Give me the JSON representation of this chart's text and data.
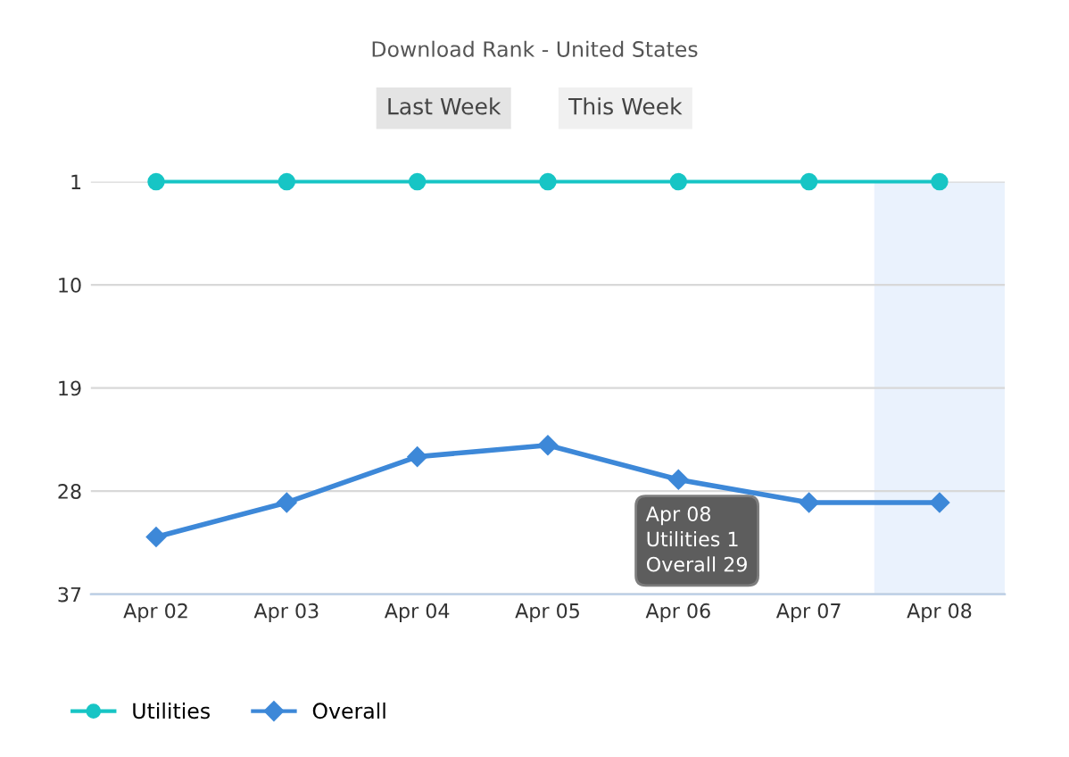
{
  "chart_data": {
    "type": "line",
    "title": "Download Rank - United States",
    "categories": [
      "Apr 02",
      "Apr 03",
      "Apr 04",
      "Apr 05",
      "Apr 06",
      "Apr 07",
      "Apr 08"
    ],
    "series": [
      {
        "name": "Utilities",
        "color": "#17c5c5",
        "marker": "circle",
        "values": [
          1,
          1,
          1,
          1,
          1,
          1,
          1
        ]
      },
      {
        "name": "Overall",
        "color": "#3d88d8",
        "marker": "diamond",
        "values": [
          32,
          29,
          25,
          24,
          27,
          29,
          29
        ]
      }
    ],
    "ylim": [
      37,
      1
    ],
    "yticks": [
      1,
      10,
      19,
      28,
      37
    ],
    "grid": "y",
    "legend": "bottom",
    "bands": [
      {
        "axis": "x",
        "from": "Apr 08",
        "to": "Apr 08",
        "color": "#eaf2fd"
      }
    ],
    "annotations": [
      "Last Week",
      "This Week",
      "Apr 08",
      "Utilities 1",
      "Overall 29"
    ]
  }
}
